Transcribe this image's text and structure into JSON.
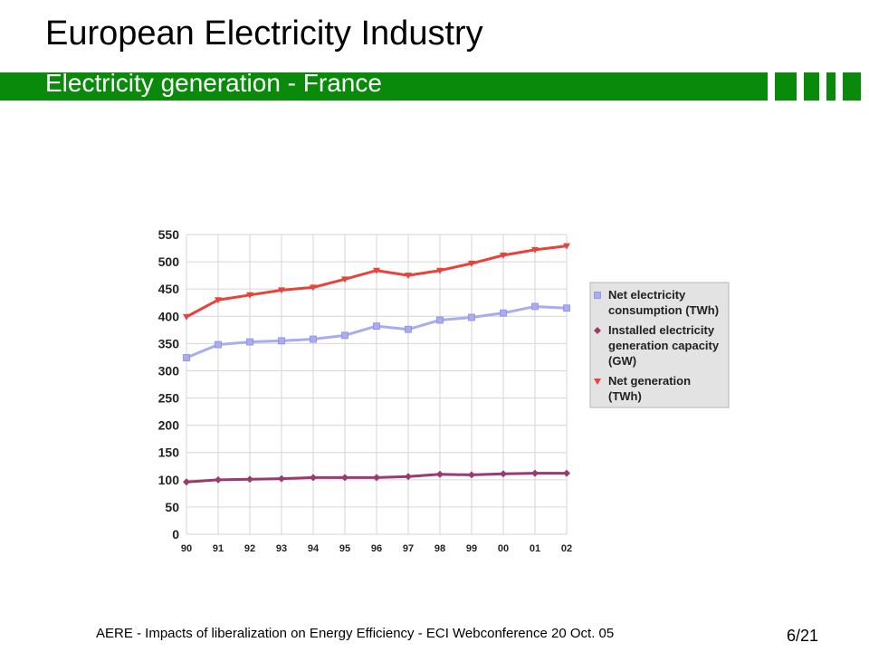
{
  "slide": {
    "title": "European Electricity Industry",
    "subtitle": "Electricity generation - France",
    "footer": "AERE - Impacts of liberalization on Energy Efficiency - ECI Webconference 20 Oct. 05",
    "page": "6/21"
  },
  "colors": {
    "accent_green": "#0a8a0a",
    "consumption": "#a9acf0",
    "capacity": "#9a3a6e",
    "generation": "#e8423a",
    "legend_bg": "#e3e3e3"
  },
  "chart_data": {
    "type": "line",
    "categories": [
      "90",
      "91",
      "92",
      "93",
      "94",
      "95",
      "96",
      "97",
      "98",
      "99",
      "00",
      "01",
      "02"
    ],
    "ylim": [
      0,
      550
    ],
    "yticks": [
      0,
      50,
      100,
      150,
      200,
      250,
      300,
      350,
      400,
      450,
      500,
      550
    ],
    "grid": true,
    "legend_position": "right",
    "series": [
      {
        "name": "Net electricity consumption (TWh)",
        "legend_lines": [
          "Net electricity",
          "consumption (TWh)"
        ],
        "marker": "square",
        "color": "#a9acf0",
        "values": [
          324,
          348,
          353,
          355,
          358,
          365,
          382,
          376,
          393,
          398,
          406,
          418,
          415
        ]
      },
      {
        "name": "Installed electricity generation capacity (GW)",
        "legend_lines": [
          "Installed electricity",
          "generation capacity",
          "(GW)"
        ],
        "marker": "diamond",
        "color": "#9a3a6e",
        "values": [
          96,
          100,
          101,
          102,
          104,
          104,
          104,
          106,
          110,
          109,
          111,
          112,
          112
        ]
      },
      {
        "name": "Net generation (TWh)",
        "legend_lines": [
          "Net generation",
          "(TWh)"
        ],
        "marker": "triangle-down",
        "color": "#e8423a",
        "values": [
          399,
          430,
          439,
          448,
          453,
          468,
          484,
          475,
          484,
          497,
          512,
          522,
          529
        ]
      }
    ]
  }
}
